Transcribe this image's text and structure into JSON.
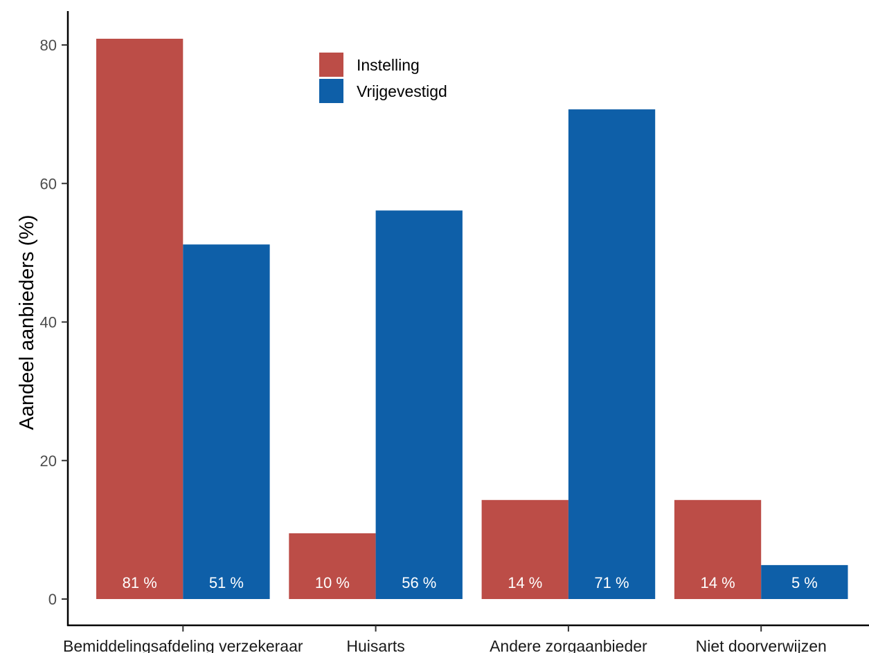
{
  "chart_data": {
    "type": "bar",
    "title": "",
    "xlabel": "",
    "ylabel": "Aandeel aanbieders (%)",
    "categories": [
      "Bemiddelingsafdeling verzekeraar",
      "Huisarts",
      "Andere zorgaanbieder",
      "Niet doorverwijzen"
    ],
    "series": [
      {
        "name": "Instelling",
        "color": "#BC4D47",
        "values": [
          80.9,
          9.5,
          14.3,
          14.3
        ],
        "labels": [
          "81 %",
          "10 %",
          "14 %",
          "14 %"
        ]
      },
      {
        "name": "Vrijgevestigd",
        "color": "#0E5FA8",
        "values": [
          51.2,
          56.1,
          70.7,
          4.9
        ],
        "labels": [
          "51 %",
          "56 %",
          "71 %",
          "5 %"
        ]
      }
    ],
    "ylim": [
      0,
      80
    ],
    "yticks": [
      0,
      20,
      40,
      60,
      80
    ],
    "grid": false,
    "legend": "top-center-left"
  }
}
